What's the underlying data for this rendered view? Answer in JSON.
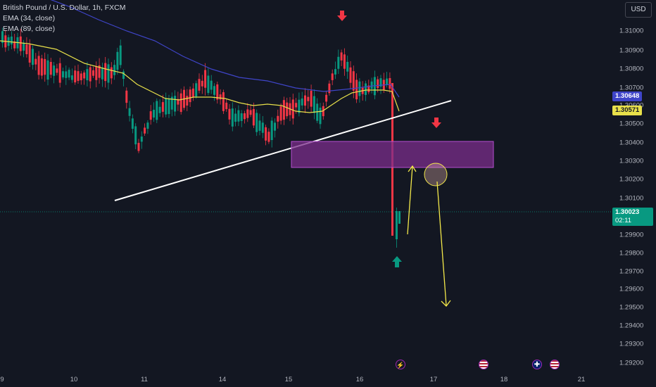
{
  "legend": {
    "symbol": "British Pound / U.S. Dollar, 1h, FXCM",
    "ema_fast": "EMA (34, close)",
    "ema_slow": "EMA (89, close)"
  },
  "currency": "USD",
  "price_axis": {
    "ticks": [
      "1.31000",
      "1.30900",
      "1.30800",
      "1.30700",
      "1.30600",
      "1.30500",
      "1.30400",
      "1.30300",
      "1.30200",
      "1.30100",
      "1.29900",
      "1.29800",
      "1.29700",
      "1.29600",
      "1.29500",
      "1.29400",
      "1.29300",
      "1.29200"
    ],
    "ema_slow_value": "1.30648",
    "ema_fast_value": "1.30571",
    "last_price": "1.30023",
    "countdown": "02:11"
  },
  "time_axis": {
    "ticks": [
      "9",
      "10",
      "11",
      "14",
      "15",
      "16",
      "17",
      "18",
      "21"
    ]
  },
  "colors": {
    "background": "#131722",
    "bull": "#089981",
    "bear": "#f23645",
    "ema_fast": "#e8e04a",
    "ema_slow": "#3f45c9",
    "zone_fill": "#7b2d8b",
    "zone_border": "#b44fd0",
    "trendline": "#ffffff",
    "annotation": "#f4e94a"
  },
  "events": [
    {
      "icon": "lightning-icon"
    },
    {
      "icon": "us-flag-icon"
    },
    {
      "icon": "uk-flag-icon"
    },
    {
      "icon": "us-flag-icon"
    }
  ]
}
